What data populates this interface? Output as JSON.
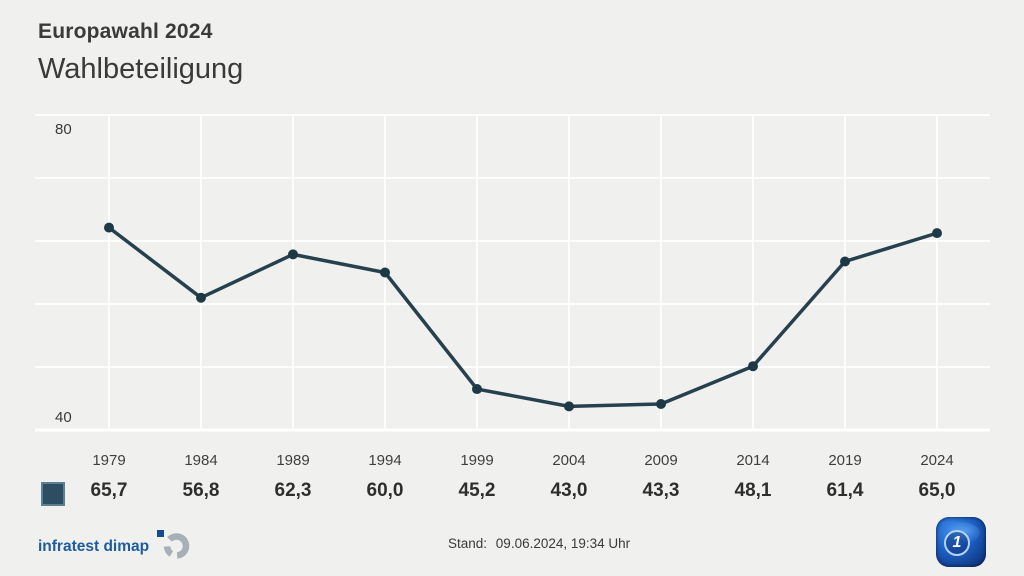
{
  "title": "Europawahl 2024",
  "subtitle": "Wahlbeteiligung",
  "chart_data": {
    "type": "line",
    "title": "Wahlbeteiligung",
    "categories": [
      "1979",
      "1984",
      "1989",
      "1994",
      "1999",
      "2004",
      "2009",
      "2014",
      "2019",
      "2024"
    ],
    "values": [
      65.7,
      56.8,
      62.3,
      60.0,
      45.2,
      43.0,
      43.3,
      48.1,
      61.4,
      65.0
    ],
    "value_labels": [
      "65,7",
      "56,8",
      "62,3",
      "60,0",
      "45,2",
      "43,0",
      "43,3",
      "48,1",
      "61,4",
      "65,0"
    ],
    "ylim": [
      40,
      80
    ],
    "ytick_labels": [
      "80",
      "40"
    ],
    "grid": true,
    "gridline_count": 6,
    "legend_position": "bottom-left",
    "line_color": "#26404e",
    "point_color": "#1e3946",
    "grid_color": "rgba(255,255,255,0.85)",
    "axis_line_color": "#ffffff",
    "background_color": "#f0f0ee"
  },
  "legend": {
    "marker_color": "#2d4d63"
  },
  "footer": {
    "source": "infratest dimap",
    "stand_label": "Stand:",
    "timestamp": "09.06.2024, 19:34 Uhr"
  },
  "icons": {
    "brand_mark": "infratest-dimap-ring-logo",
    "app_icon": "tagesschau-ard-globe",
    "ard_one_glyph": "1"
  },
  "colors": {
    "text_dark": "#3a3a38",
    "infratest_blue": "#1d5c9e",
    "infratest_square": "#134a94",
    "infratest_ring_gray": "#a9afb6",
    "tagesschau_blue": "#1c5ec2"
  }
}
